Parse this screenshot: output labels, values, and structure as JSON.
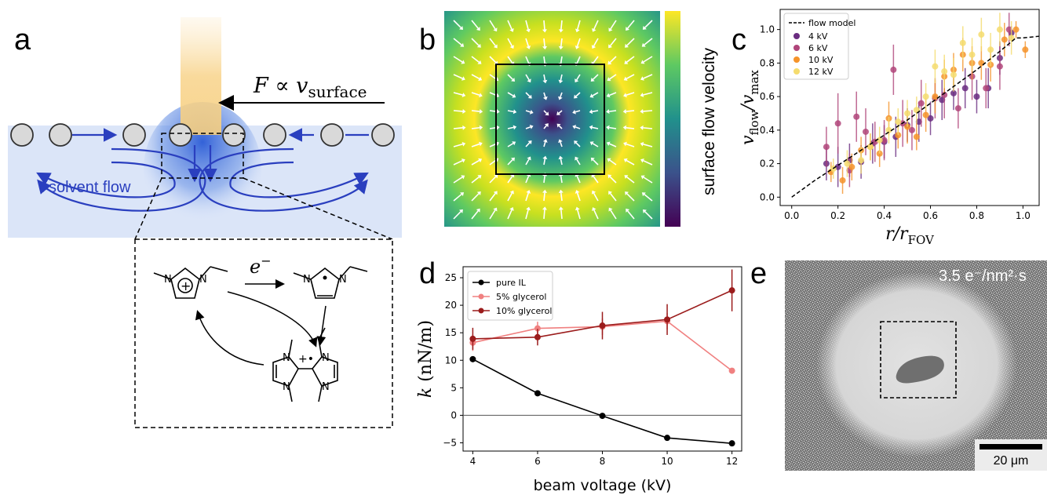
{
  "panels": {
    "a": "a",
    "b": "b",
    "c": "c",
    "d": "d",
    "e": "e"
  },
  "panel_a": {
    "force_label_main": "F ∝ v",
    "force_label_sub": "surface",
    "solvent_flow": "solvent flow",
    "electron": "e",
    "electron_sup": "−",
    "plus_dot": "+•"
  },
  "panel_b": {
    "colorbar_label": "surface flow velocity"
  },
  "panel_e": {
    "dose_label": "3.5 e⁻/nm²·s",
    "scalebar_label": "20 μm"
  },
  "chart_data": [
    {
      "id": "c",
      "type": "scatter",
      "xlabel_main": "r/r",
      "xlabel_sub": "FOV",
      "ylabel_num": "v",
      "ylabel_num_sub": "flow",
      "ylabel_den": "v",
      "ylabel_den_sub": "max",
      "xlim": [
        -0.05,
        1.07
      ],
      "ylim": [
        -0.05,
        1.12
      ],
      "x_ticks": [
        "0.0",
        "0.2",
        "0.4",
        "0.6",
        "0.8",
        "1.0"
      ],
      "y_ticks": [
        "0.0",
        "0.2",
        "0.4",
        "0.6",
        "0.8",
        "1.0"
      ],
      "legend_position": "top-left",
      "model": {
        "name": "flow model",
        "x": [
          0.0,
          0.05,
          0.1,
          0.2,
          0.3,
          0.4,
          0.5,
          0.6,
          0.7,
          0.8,
          0.9,
          0.97,
          1.0,
          1.07
        ],
        "y": [
          0.0,
          0.05,
          0.1,
          0.19,
          0.28,
          0.37,
          0.46,
          0.56,
          0.66,
          0.76,
          0.87,
          0.95,
          0.95,
          0.96
        ]
      },
      "series": [
        {
          "name": "4 kV",
          "color": "#6a2c80",
          "x": [
            0.15,
            0.2,
            0.25,
            0.3,
            0.35,
            0.4,
            0.45,
            0.5,
            0.55,
            0.6,
            0.65,
            0.7,
            0.75,
            0.8,
            0.85,
            0.9,
            0.95
          ],
          "y": [
            0.2,
            0.18,
            0.22,
            0.21,
            0.32,
            0.33,
            0.36,
            0.43,
            0.45,
            0.47,
            0.58,
            0.62,
            0.65,
            0.6,
            0.65,
            0.83,
            0.98
          ],
          "err": [
            0.1,
            0.12,
            0.1,
            0.1,
            0.12,
            0.1,
            0.12,
            0.1,
            0.12,
            0.1,
            0.12,
            0.1,
            0.12,
            0.1,
            0.12,
            0.1,
            0.04
          ]
        },
        {
          "name": "6 kV",
          "color": "#b0457a",
          "x": [
            0.15,
            0.2,
            0.25,
            0.28,
            0.32,
            0.36,
            0.4,
            0.44,
            0.48,
            0.52,
            0.56,
            0.62,
            0.66,
            0.72,
            0.78,
            0.84,
            0.9,
            0.94
          ],
          "y": [
            0.3,
            0.44,
            0.16,
            0.48,
            0.39,
            0.33,
            0.34,
            0.76,
            0.44,
            0.4,
            0.56,
            0.59,
            0.61,
            0.53,
            0.72,
            0.65,
            0.78,
            1.0
          ],
          "err": [
            0.12,
            0.18,
            0.1,
            0.15,
            0.14,
            0.12,
            0.12,
            0.15,
            0.14,
            0.12,
            0.14,
            0.12,
            0.14,
            0.12,
            0.14,
            0.12,
            0.14,
            0.1
          ]
        },
        {
          "name": "10 kV",
          "color": "#f5932a",
          "x": [
            0.17,
            0.22,
            0.26,
            0.3,
            0.34,
            0.38,
            0.42,
            0.46,
            0.5,
            0.54,
            0.58,
            0.62,
            0.66,
            0.7,
            0.74,
            0.78,
            0.82,
            0.86,
            0.92,
            0.97,
            1.01
          ],
          "y": [
            0.15,
            0.1,
            0.18,
            0.28,
            0.3,
            0.26,
            0.47,
            0.37,
            0.42,
            0.36,
            0.49,
            0.6,
            0.72,
            0.76,
            0.85,
            0.8,
            0.8,
            0.79,
            0.94,
            1.0,
            0.88
          ],
          "err": [
            0.06,
            0.08,
            0.08,
            0.08,
            0.08,
            0.08,
            0.1,
            0.08,
            0.1,
            0.08,
            0.1,
            0.1,
            0.1,
            0.1,
            0.1,
            0.1,
            0.1,
            0.1,
            0.1,
            0.05,
            0.05
          ]
        },
        {
          "name": "12 kV",
          "color": "#f5dc6e",
          "x": [
            0.18,
            0.24,
            0.3,
            0.34,
            0.38,
            0.42,
            0.46,
            0.5,
            0.54,
            0.58,
            0.62,
            0.66,
            0.7,
            0.74,
            0.78,
            0.82,
            0.86,
            0.9,
            0.95
          ],
          "y": [
            0.17,
            0.2,
            0.22,
            0.3,
            0.34,
            0.4,
            0.45,
            0.5,
            0.52,
            0.6,
            0.78,
            0.75,
            0.73,
            0.92,
            0.85,
            0.97,
            0.88,
            1.0,
            0.95
          ],
          "err": [
            0.06,
            0.08,
            0.08,
            0.08,
            0.08,
            0.08,
            0.08,
            0.08,
            0.08,
            0.08,
            0.1,
            0.1,
            0.1,
            0.1,
            0.1,
            0.1,
            0.1,
            0.1,
            0.1
          ]
        }
      ]
    },
    {
      "id": "d",
      "type": "line",
      "xlabel": "beam voltage (kV)",
      "ylabel_main": "k",
      "ylabel_unit": " (nN/m)",
      "x": [
        4,
        6,
        8,
        10,
        12
      ],
      "xlim": [
        3.7,
        12.3
      ],
      "ylim": [
        -6.5,
        27
      ],
      "x_ticks": [
        "4",
        "6",
        "8",
        "10",
        "12"
      ],
      "y_ticks": [
        "−5",
        "0",
        "5",
        "10",
        "15",
        "20",
        "25"
      ],
      "y_tick_values": [
        -5,
        0,
        5,
        10,
        15,
        20,
        25
      ],
      "zero_line": true,
      "legend_position": "top-left",
      "series": [
        {
          "name": "pure IL",
          "color": "#000000",
          "values": [
            10.2,
            4.0,
            -0.1,
            -4.1,
            -5.1
          ],
          "err": [
            0,
            0,
            0,
            0,
            0
          ]
        },
        {
          "name": "5% glycerol",
          "color": "#f08080",
          "values": [
            13.2,
            15.8,
            16.1,
            17.1,
            8.1
          ],
          "err": [
            1.5,
            1.2,
            1.5,
            1.5,
            0
          ]
        },
        {
          "name": "10% glycerol",
          "color": "#9b1c1c",
          "values": [
            13.9,
            14.2,
            16.3,
            17.4,
            22.7
          ],
          "err": [
            2.0,
            1.5,
            2.5,
            2.8,
            3.8
          ]
        }
      ]
    }
  ]
}
